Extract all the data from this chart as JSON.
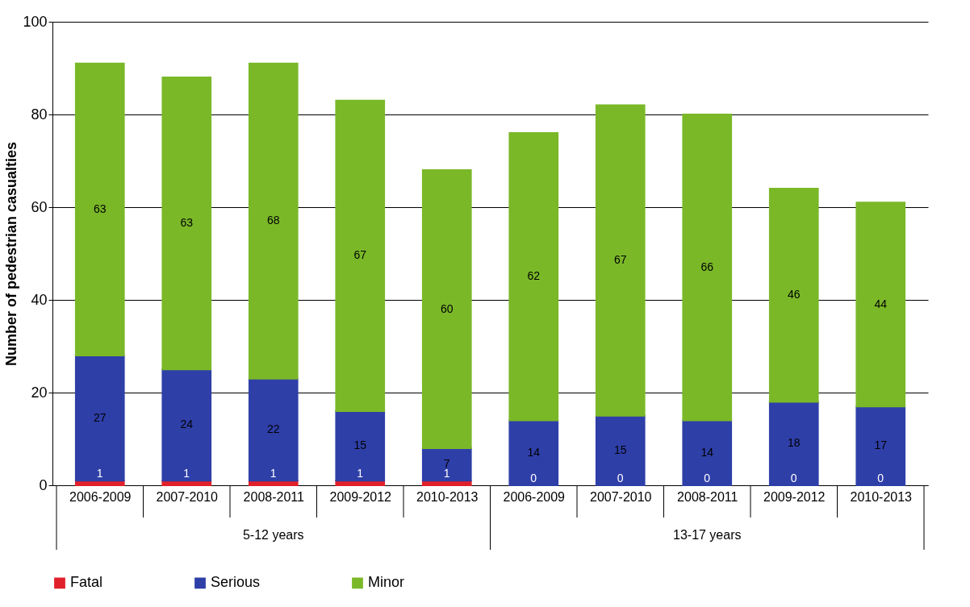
{
  "chart_data": {
    "type": "bar",
    "stacked": true,
    "ylabel": "Number of pedestrian casualties",
    "categories": [
      "2006-2009",
      "2007-2010",
      "2008-2011",
      "2009-2012",
      "2010-2013",
      "2006-2009",
      "2007-2010",
      "2008-2011",
      "2009-2012",
      "2010-2013"
    ],
    "series": [
      {
        "name": "Fatal",
        "color": "#e0202a",
        "values": [
          1,
          1,
          1,
          1,
          1,
          0,
          0,
          0,
          0,
          0
        ]
      },
      {
        "name": "Serious",
        "color": "#2f3fa8",
        "values": [
          27,
          24,
          22,
          15,
          7,
          14,
          15,
          14,
          18,
          17
        ]
      },
      {
        "name": "Minor",
        "color": "#7ab828",
        "values": [
          63,
          63,
          68,
          67,
          60,
          62,
          67,
          66,
          46,
          44
        ]
      }
    ],
    "annotations": [
      "5-12 years",
      "13-17 years"
    ],
    "ylim": [
      0,
      100
    ],
    "yticks": [
      0,
      20,
      40,
      60,
      80,
      100
    ],
    "grid": "y",
    "legend": "bottom",
    "data_labels": true
  }
}
